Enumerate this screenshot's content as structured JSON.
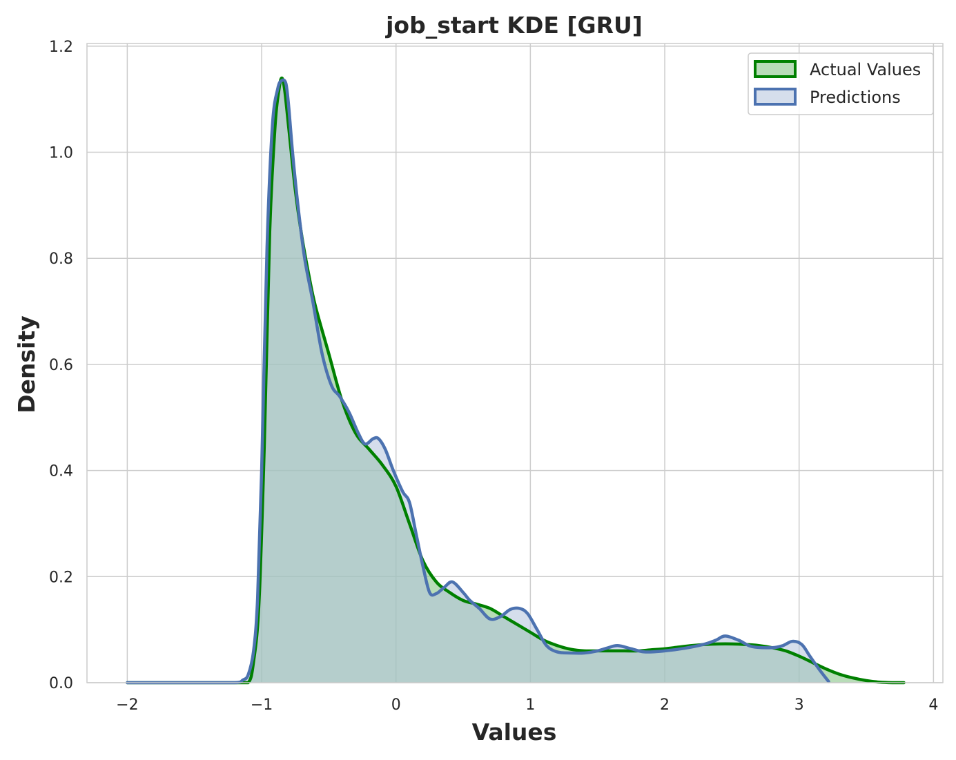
{
  "chart_data": {
    "type": "area",
    "title": "job_start KDE [GRU]",
    "xlabel": "Values",
    "ylabel": "Density",
    "xlim": [
      -2.3,
      4.07
    ],
    "ylim": [
      0,
      1.205
    ],
    "xticks": [
      -2,
      -1,
      0,
      1,
      2,
      3,
      4
    ],
    "xtick_labels": [
      "−2",
      "−1",
      "0",
      "1",
      "2",
      "3",
      "4"
    ],
    "yticks": [
      0.0,
      0.2,
      0.4,
      0.6,
      0.8,
      1.0,
      1.2
    ],
    "ytick_labels": [
      "0.0",
      "0.2",
      "0.4",
      "0.6",
      "0.8",
      "1.0",
      "1.2"
    ],
    "grid": true,
    "legend_position": "top-right",
    "series": [
      {
        "name": "Actual Values",
        "color": "#008000",
        "fill": "#7ebf7e",
        "x": [
          -2.0,
          -1.5,
          -1.2,
          -1.1,
          -1.06,
          -1.02,
          -0.98,
          -0.94,
          -0.9,
          -0.87,
          -0.85,
          -0.83,
          -0.8,
          -0.75,
          -0.7,
          -0.65,
          -0.6,
          -0.5,
          -0.4,
          -0.3,
          -0.2,
          -0.1,
          0.0,
          0.1,
          0.2,
          0.3,
          0.4,
          0.5,
          0.6,
          0.7,
          0.8,
          0.9,
          1.0,
          1.1,
          1.2,
          1.3,
          1.4,
          1.5,
          1.6,
          1.7,
          1.8,
          1.9,
          2.0,
          2.1,
          2.2,
          2.3,
          2.4,
          2.5,
          2.6,
          2.7,
          2.8,
          2.9,
          3.0,
          3.1,
          3.2,
          3.3,
          3.4,
          3.5,
          3.6,
          3.7,
          3.78
        ],
        "values": [
          0.0,
          0.0,
          0.0,
          0.0,
          0.04,
          0.15,
          0.45,
          0.85,
          1.05,
          1.12,
          1.14,
          1.12,
          1.05,
          0.93,
          0.84,
          0.77,
          0.71,
          0.62,
          0.53,
          0.47,
          0.44,
          0.41,
          0.37,
          0.3,
          0.23,
          0.19,
          0.17,
          0.155,
          0.148,
          0.14,
          0.125,
          0.11,
          0.095,
          0.08,
          0.07,
          0.063,
          0.06,
          0.06,
          0.06,
          0.06,
          0.06,
          0.062,
          0.064,
          0.067,
          0.07,
          0.072,
          0.073,
          0.073,
          0.072,
          0.07,
          0.066,
          0.06,
          0.05,
          0.038,
          0.026,
          0.016,
          0.009,
          0.004,
          0.001,
          0.0,
          0.0
        ]
      },
      {
        "name": "Predictions",
        "color": "#4c72b0",
        "fill": "#b3c2dd",
        "x": [
          -2.0,
          -1.5,
          -1.2,
          -1.14,
          -1.1,
          -1.06,
          -1.03,
          -1.0,
          -0.96,
          -0.92,
          -0.88,
          -0.85,
          -0.82,
          -0.8,
          -0.77,
          -0.73,
          -0.68,
          -0.62,
          -0.55,
          -0.48,
          -0.42,
          -0.35,
          -0.28,
          -0.23,
          -0.17,
          -0.13,
          -0.08,
          -0.02,
          0.05,
          0.1,
          0.15,
          0.2,
          0.25,
          0.3,
          0.36,
          0.42,
          0.5,
          0.55,
          0.62,
          0.7,
          0.78,
          0.85,
          0.92,
          0.98,
          1.05,
          1.12,
          1.2,
          1.3,
          1.4,
          1.5,
          1.58,
          1.65,
          1.75,
          1.85,
          2.0,
          2.15,
          2.3,
          2.38,
          2.45,
          2.55,
          2.65,
          2.8,
          2.88,
          2.95,
          3.02,
          3.08,
          3.15,
          3.22
        ],
        "values": [
          0.0,
          0.0,
          0.0,
          0.005,
          0.015,
          0.06,
          0.16,
          0.4,
          0.82,
          1.05,
          1.12,
          1.135,
          1.13,
          1.09,
          1.0,
          0.9,
          0.8,
          0.72,
          0.62,
          0.56,
          0.54,
          0.51,
          0.47,
          0.45,
          0.46,
          0.46,
          0.44,
          0.4,
          0.36,
          0.34,
          0.28,
          0.22,
          0.17,
          0.168,
          0.18,
          0.19,
          0.17,
          0.155,
          0.14,
          0.12,
          0.125,
          0.138,
          0.14,
          0.13,
          0.1,
          0.07,
          0.058,
          0.056,
          0.056,
          0.06,
          0.066,
          0.07,
          0.064,
          0.058,
          0.06,
          0.065,
          0.073,
          0.08,
          0.088,
          0.08,
          0.068,
          0.066,
          0.07,
          0.078,
          0.072,
          0.05,
          0.025,
          0.002
        ]
      }
    ]
  }
}
